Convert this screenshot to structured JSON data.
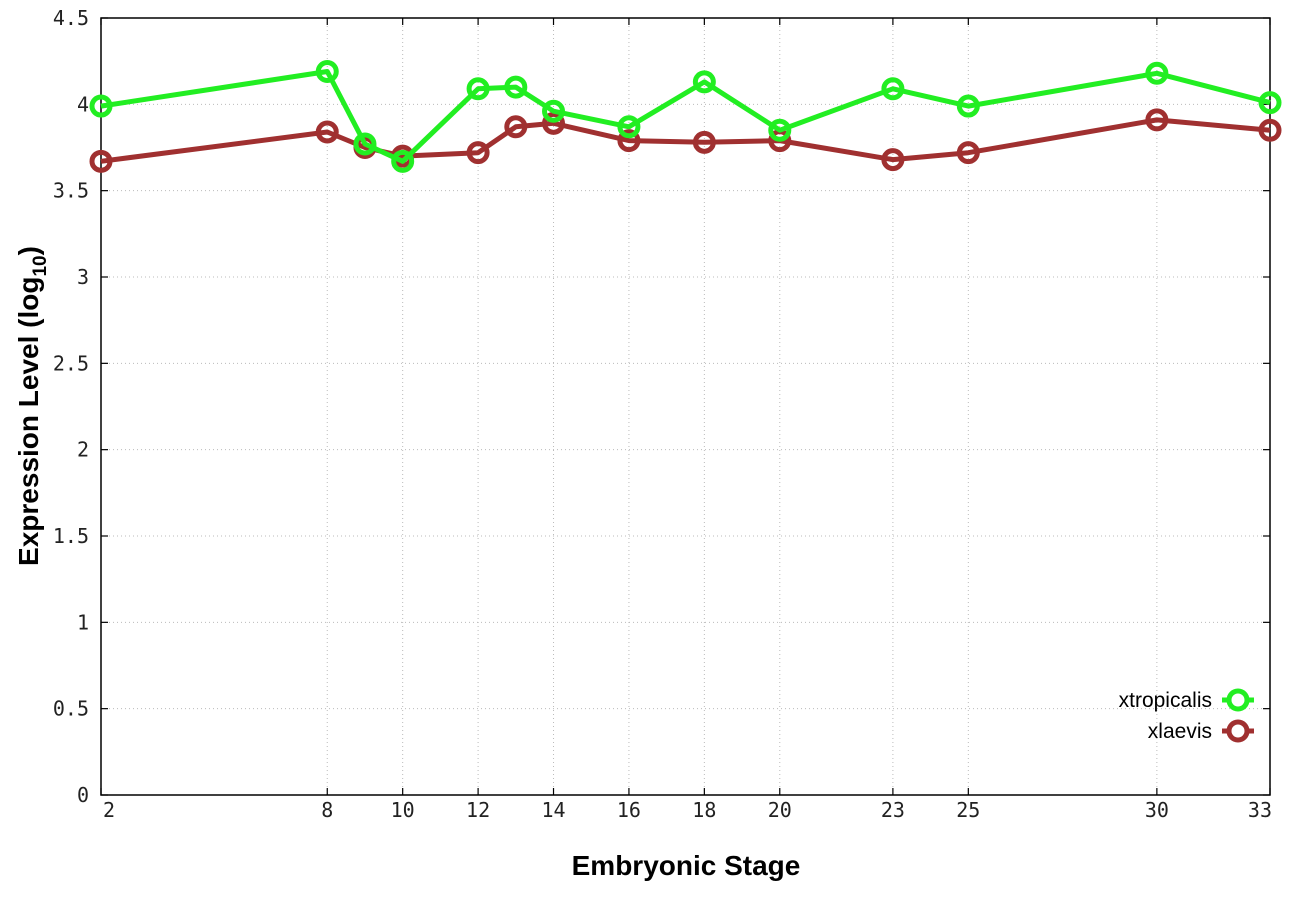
{
  "chart_data": {
    "type": "line",
    "title": "",
    "xlabel": "Embryonic Stage",
    "ylabel_main": "Expression Level (log",
    "ylabel_sub": "10",
    "ylabel_close": ")",
    "xlim": [
      2,
      33
    ],
    "ylim": [
      0,
      4.5
    ],
    "xticks": [
      2,
      8,
      10,
      12,
      14,
      16,
      18,
      20,
      23,
      25,
      30,
      33
    ],
    "xtick_labels": [
      "2",
      "8",
      "10",
      "12",
      "14",
      "16",
      "18",
      "20",
      "23",
      "25",
      "30",
      "33"
    ],
    "yticks": [
      0,
      0.5,
      1,
      1.5,
      2,
      2.5,
      3,
      3.5,
      4,
      4.5
    ],
    "ytick_labels": [
      "0",
      "0.5",
      "1",
      "1.5",
      "2",
      "2.5",
      "3",
      "3.5",
      "4",
      "4.5"
    ],
    "grid": true,
    "legend_position": "bottom-right",
    "series": [
      {
        "name": "xtropicalis",
        "color": "#22ee22",
        "x": [
          2,
          8,
          9,
          10,
          12,
          13,
          14,
          16,
          18,
          20,
          23,
          25,
          30,
          33
        ],
        "y": [
          3.99,
          4.19,
          3.77,
          3.67,
          4.09,
          4.1,
          3.96,
          3.87,
          4.13,
          3.85,
          4.09,
          3.99,
          4.18,
          4.01
        ]
      },
      {
        "name": "xlaevis",
        "color": "#a03030",
        "x": [
          2,
          8,
          9,
          10,
          12,
          13,
          14,
          16,
          18,
          20,
          23,
          25,
          30,
          33
        ],
        "y": [
          3.67,
          3.84,
          3.75,
          3.7,
          3.72,
          3.87,
          3.89,
          3.79,
          3.78,
          3.79,
          3.68,
          3.72,
          3.91,
          3.85
        ]
      }
    ]
  }
}
